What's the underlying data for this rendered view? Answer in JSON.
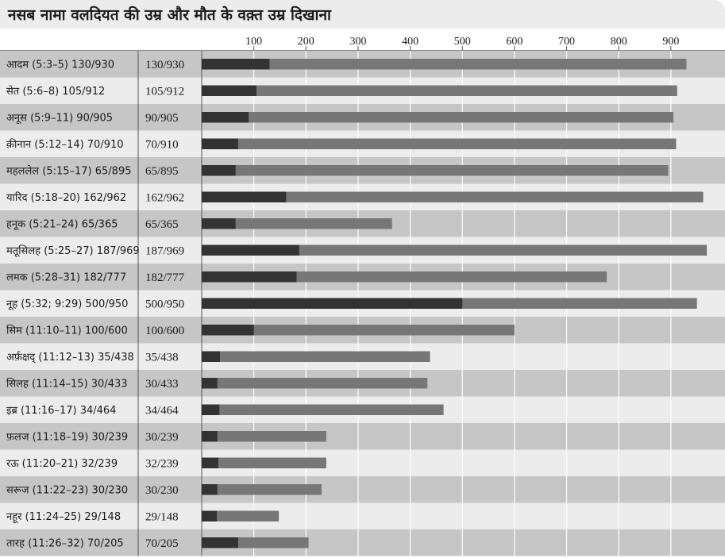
{
  "title": "नसब नामा वलदियत की उम्र और मौत के वक़्त उम्र दिखाना",
  "colors": {
    "fatherhood_bar": "#333333",
    "lifespan_bar": "#777777",
    "row_dark": "#c6c6c6",
    "row_light": "#ececec",
    "grid": "#ffffff"
  },
  "chart_data": {
    "type": "bar",
    "orientation": "horizontal",
    "stacked_overlay": true,
    "xlim": [
      0,
      990
    ],
    "x_ticks": [
      100,
      200,
      300,
      400,
      500,
      600,
      700,
      800,
      900
    ],
    "grid": true,
    "legend": "none",
    "categories": [
      "आदम (5:3–5) 130/930",
      "सेत (5:6–8) 105/912",
      "अनूस (5:9–11) 90/905",
      "क़ीनान (5:12–14) 70/910",
      "महललेल (5:15–17) 65/895",
      "यारिद (5:18–20) 162/962",
      "हनूक (5:21–24) 65/365",
      "मतूसिलह (5:25–27) 187/969",
      "लमक (5:28–31) 182/777",
      "नूह (5:32; 9:29) 500/950",
      "सिम (11:10–11) 100/600",
      "अर्फ़क्षद् (11:12–13) 35/438",
      "सिलह (11:14–15) 30/433",
      "इब्र (11:16–17) 34/464",
      "फ़लज (11:18–19) 30/239",
      "रऊ (11:20–21) 32/239",
      "सरूज (11:22–23) 30/230",
      "नहूर (11:24–25) 29/148",
      "तारह (11:26–32) 70/205"
    ],
    "value_labels": [
      "130/930",
      "105/912",
      "90/905",
      "70/910",
      "65/895",
      "162/962",
      "65/365",
      "187/969",
      "182/777",
      "500/950",
      "100/600",
      "35/438",
      "30/433",
      "34/464",
      "30/239",
      "32/239",
      "30/230",
      "29/148",
      "70/205"
    ],
    "series": [
      {
        "key": "father_age",
        "values": [
          130,
          105,
          90,
          70,
          65,
          162,
          65,
          187,
          182,
          500,
          100,
          35,
          30,
          34,
          30,
          32,
          30,
          29,
          70
        ]
      },
      {
        "key": "age_at_death",
        "values": [
          930,
          912,
          905,
          910,
          895,
          962,
          365,
          969,
          777,
          950,
          600,
          438,
          433,
          464,
          239,
          239,
          230,
          148,
          205
        ]
      }
    ]
  }
}
